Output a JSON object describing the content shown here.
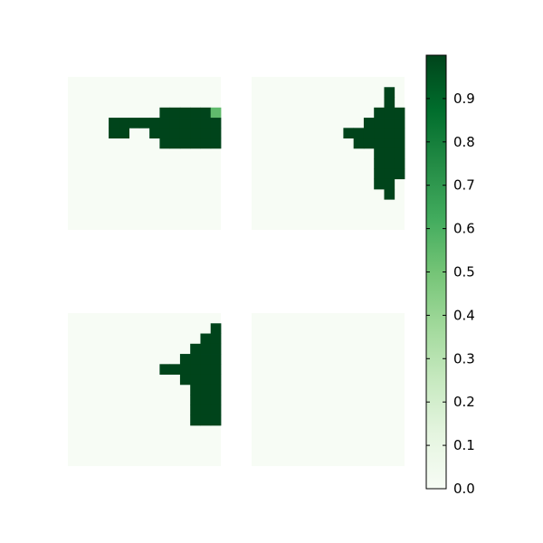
{
  "colormap": {
    "name": "Greens",
    "stops": [
      "#f7fcf5",
      "#e5f5e0",
      "#c7e9c0",
      "#a1d99b",
      "#74c476",
      "#41ab5d",
      "#238b45",
      "#006d2c",
      "#00441b"
    ]
  },
  "chart_data": {
    "type": "heatmap",
    "title": "",
    "grid": false,
    "vmin": 0,
    "vmax": 1,
    "colorbar": {
      "placement": "right",
      "ticks": [
        "0.0",
        "0.1",
        "0.2",
        "0.3",
        "0.4",
        "0.5",
        "0.6",
        "0.7",
        "0.8",
        "0.9"
      ]
    },
    "panels": [
      {
        "position": "top-left",
        "rows": 15,
        "cols": 15,
        "cells": [
          {
            "row": 3,
            "cols": [
              9,
              10,
              11,
              12,
              13
            ],
            "value": 1
          },
          {
            "row": 3,
            "cols": [
              14
            ],
            "value": 0.55
          },
          {
            "row": 4,
            "cols": [
              4,
              5,
              6,
              7,
              8,
              9,
              10,
              11,
              12,
              13,
              14
            ],
            "value": 1
          },
          {
            "row": 5,
            "cols": [
              4,
              5,
              8,
              9,
              10,
              11,
              12,
              13,
              14
            ],
            "value": 1
          },
          {
            "row": 6,
            "cols": [
              9,
              10,
              11,
              12,
              13,
              14
            ],
            "value": 1
          }
        ]
      },
      {
        "position": "top-right",
        "rows": 15,
        "cols": 15,
        "cells": [
          {
            "row": 1,
            "cols": [
              13
            ],
            "value": 1
          },
          {
            "row": 2,
            "cols": [
              13
            ],
            "value": 1
          },
          {
            "row": 3,
            "cols": [
              12,
              13,
              14
            ],
            "value": 1
          },
          {
            "row": 4,
            "cols": [
              11,
              12,
              13,
              14
            ],
            "value": 1
          },
          {
            "row": 5,
            "cols": [
              9,
              10,
              11,
              12,
              13,
              14
            ],
            "value": 1
          },
          {
            "row": 6,
            "cols": [
              10,
              11,
              12,
              13,
              14
            ],
            "value": 1
          },
          {
            "row": 7,
            "cols": [
              12,
              13,
              14
            ],
            "value": 1
          },
          {
            "row": 8,
            "cols": [
              12,
              13,
              14
            ],
            "value": 1
          },
          {
            "row": 9,
            "cols": [
              12,
              13,
              14
            ],
            "value": 1
          },
          {
            "row": 10,
            "cols": [
              12,
              13
            ],
            "value": 1
          },
          {
            "row": 11,
            "cols": [
              13
            ],
            "value": 1
          }
        ]
      },
      {
        "position": "bottom-left",
        "rows": 15,
        "cols": 15,
        "cells": [
          {
            "row": 1,
            "cols": [
              14
            ],
            "value": 1
          },
          {
            "row": 2,
            "cols": [
              13,
              14
            ],
            "value": 1
          },
          {
            "row": 3,
            "cols": [
              12,
              13,
              14
            ],
            "value": 1
          },
          {
            "row": 4,
            "cols": [
              11,
              12,
              13,
              14
            ],
            "value": 1
          },
          {
            "row": 5,
            "cols": [
              9,
              10,
              11,
              12,
              13,
              14
            ],
            "value": 1
          },
          {
            "row": 6,
            "cols": [
              11,
              12,
              13,
              14
            ],
            "value": 1
          },
          {
            "row": 7,
            "cols": [
              12,
              13,
              14
            ],
            "value": 1
          },
          {
            "row": 8,
            "cols": [
              12,
              13,
              14
            ],
            "value": 1
          },
          {
            "row": 9,
            "cols": [
              12,
              13,
              14
            ],
            "value": 1
          },
          {
            "row": 10,
            "cols": [
              12,
              13,
              14
            ],
            "value": 1
          }
        ]
      },
      {
        "position": "bottom-right",
        "rows": 15,
        "cols": 15,
        "cells": []
      }
    ]
  }
}
